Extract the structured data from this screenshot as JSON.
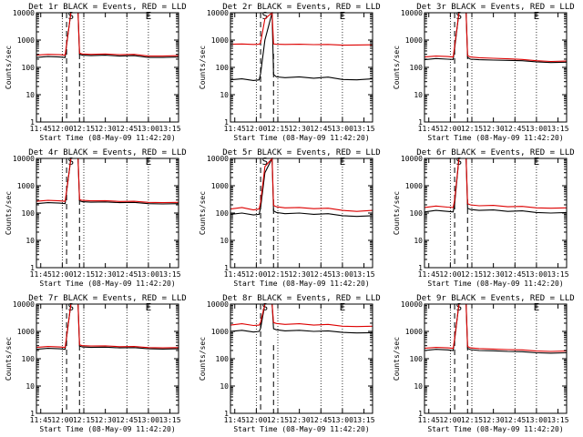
{
  "figure": {
    "ylabel": "Counts/sec",
    "xlabel": "Start Time (08-May-09 11:42:20)"
  },
  "chart_data": [
    {
      "type": "line",
      "title": "Det 1r BLACK = Events, RED = LLD",
      "ylabel": "Counts/sec",
      "xlabel": "Start Time (08-May-09 11:42:20)",
      "xticks": [
        "11:45",
        "12:00",
        "12:15",
        "12:30",
        "12:45",
        "13:00",
        "13:15"
      ],
      "yticks": [
        "1",
        "10",
        "100",
        "1000",
        "10000"
      ],
      "yscale": "log",
      "ylim": [
        1,
        10000
      ],
      "xlim": [
        "11:42",
        "13:21"
      ],
      "markers": [
        {
          "label": "S",
          "time": "12:06"
        },
        {
          "label": "E",
          "time": "13:00"
        }
      ],
      "series": [
        {
          "color": "#000000",
          "times": [
            "11:42",
            "11:50",
            "11:58",
            "12:02",
            "12:03",
            "12:06",
            "12:11",
            "12:12",
            "12:14",
            "12:20",
            "12:30",
            "12:40",
            "12:50",
            "13:00",
            "13:10",
            "13:21"
          ],
          "values": [
            230,
            250,
            240,
            230,
            650,
            10000,
            10000,
            300,
            280,
            270,
            280,
            260,
            270,
            230,
            230,
            240
          ]
        },
        {
          "color": "#dd0000",
          "times": [
            "11:42",
            "11:50",
            "11:58",
            "12:02",
            "12:03",
            "12:06",
            "12:11",
            "12:12",
            "12:14",
            "12:20",
            "12:30",
            "12:40",
            "12:50",
            "13:00",
            "13:10",
            "13:21"
          ],
          "values": [
            280,
            300,
            290,
            280,
            700,
            10000,
            10000,
            330,
            310,
            300,
            310,
            290,
            300,
            260,
            260,
            270
          ]
        }
      ]
    },
    {
      "type": "line",
      "title": "Det 2r BLACK = Events, RED = LLD",
      "ylabel": "Counts/sec",
      "xlabel": "Start Time (08-May-09 11:42:20)",
      "xticks": [
        "11:45",
        "12:00",
        "12:15",
        "12:30",
        "12:45",
        "13:00",
        "13:15"
      ],
      "yticks": [
        "1",
        "10",
        "100",
        "1000",
        "10000"
      ],
      "yscale": "log",
      "ylim": [
        1,
        10000
      ],
      "xlim": [
        "11:42",
        "13:21"
      ],
      "markers": [
        {
          "label": "S",
          "time": "12:06"
        },
        {
          "label": "E",
          "time": "13:00"
        }
      ],
      "series": [
        {
          "color": "#000000",
          "times": [
            "11:42",
            "11:50",
            "11:58",
            "12:02",
            "12:03",
            "12:06",
            "12:11",
            "12:12",
            "12:14",
            "12:20",
            "12:30",
            "12:40",
            "12:50",
            "13:00",
            "13:10",
            "13:21"
          ],
          "values": [
            35,
            38,
            33,
            35,
            60,
            1000,
            10000,
            55,
            45,
            42,
            45,
            40,
            44,
            36,
            35,
            38
          ]
        },
        {
          "color": "#dd0000",
          "times": [
            "11:42",
            "11:50",
            "11:58",
            "12:02",
            "12:03",
            "12:06",
            "12:11",
            "12:12",
            "12:14",
            "12:20",
            "12:30",
            "12:40",
            "12:50",
            "13:00",
            "13:10",
            "13:21"
          ],
          "values": [
            700,
            720,
            690,
            700,
            800,
            6000,
            10000,
            720,
            700,
            690,
            700,
            680,
            690,
            650,
            660,
            670
          ]
        }
      ]
    },
    {
      "type": "line",
      "title": "Det 3r BLACK = Events, RED = LLD",
      "ylabel": "Counts/sec",
      "xlabel": "Start Time (08-May-09 11:42:20)",
      "xticks": [
        "11:45",
        "12:00",
        "12:15",
        "12:30",
        "12:45",
        "13:00",
        "13:15"
      ],
      "yticks": [
        "1",
        "10",
        "100",
        "1000",
        "10000"
      ],
      "yscale": "log",
      "ylim": [
        1,
        10000
      ],
      "xlim": [
        "11:42",
        "13:21"
      ],
      "markers": [
        {
          "label": "S",
          "time": "12:06"
        },
        {
          "label": "E",
          "time": "13:00"
        }
      ],
      "series": [
        {
          "color": "#000000",
          "times": [
            "11:42",
            "11:50",
            "11:58",
            "12:02",
            "12:03",
            "12:06",
            "12:11",
            "12:12",
            "12:14",
            "12:20",
            "12:30",
            "12:40",
            "12:50",
            "13:00",
            "13:10",
            "13:21"
          ],
          "values": [
            190,
            210,
            200,
            195,
            500,
            10000,
            10000,
            230,
            200,
            190,
            185,
            180,
            175,
            160,
            150,
            155
          ]
        },
        {
          "color": "#dd0000",
          "times": [
            "11:42",
            "11:50",
            "11:58",
            "12:02",
            "12:03",
            "12:06",
            "12:11",
            "12:12",
            "12:14",
            "12:20",
            "12:30",
            "12:40",
            "12:50",
            "13:00",
            "13:10",
            "13:21"
          ],
          "values": [
            240,
            260,
            250,
            240,
            600,
            10000,
            10000,
            270,
            240,
            225,
            215,
            205,
            195,
            175,
            165,
            170
          ]
        }
      ]
    },
    {
      "type": "line",
      "title": "Det 4r BLACK = Events, RED = LLD",
      "ylabel": "Counts/sec",
      "xlabel": "Start Time (08-May-09 11:42:20)",
      "xticks": [
        "11:45",
        "12:00",
        "12:15",
        "12:30",
        "12:45",
        "13:00",
        "13:15"
      ],
      "yticks": [
        "1",
        "10",
        "100",
        "1000",
        "10000"
      ],
      "yscale": "log",
      "ylim": [
        1,
        10000
      ],
      "xlim": [
        "11:42",
        "13:21"
      ],
      "markers": [
        {
          "label": "S",
          "time": "12:06"
        },
        {
          "label": "E",
          "time": "13:00"
        }
      ],
      "series": [
        {
          "color": "#000000",
          "times": [
            "11:42",
            "11:50",
            "11:58",
            "12:02",
            "12:03",
            "12:06",
            "12:11",
            "12:12",
            "12:14",
            "12:20",
            "12:30",
            "12:40",
            "12:50",
            "13:00",
            "13:10",
            "13:21"
          ],
          "values": [
            220,
            240,
            230,
            220,
            600,
            10000,
            10000,
            280,
            260,
            250,
            255,
            240,
            245,
            220,
            215,
            220
          ]
        },
        {
          "color": "#dd0000",
          "times": [
            "11:42",
            "11:50",
            "11:58",
            "12:02",
            "12:03",
            "12:06",
            "12:11",
            "12:12",
            "12:14",
            "12:20",
            "12:30",
            "12:40",
            "12:50",
            "13:00",
            "13:10",
            "13:21"
          ],
          "values": [
            270,
            290,
            280,
            270,
            650,
            10000,
            10000,
            310,
            290,
            280,
            285,
            265,
            270,
            245,
            240,
            245
          ]
        }
      ]
    },
    {
      "type": "line",
      "title": "Det 5r BLACK = Events, RED = LLD",
      "ylabel": "Counts/sec",
      "xlabel": "Start Time (08-May-09 11:42:20)",
      "xticks": [
        "11:45",
        "12:00",
        "12:15",
        "12:30",
        "12:45",
        "13:00",
        "13:15"
      ],
      "yticks": [
        "1",
        "10",
        "100",
        "1000",
        "10000"
      ],
      "yscale": "log",
      "ylim": [
        1,
        10000
      ],
      "xlim": [
        "11:42",
        "13:21"
      ],
      "markers": [
        {
          "label": "S",
          "time": "12:06"
        },
        {
          "label": "E",
          "time": "13:00"
        }
      ],
      "series": [
        {
          "color": "#000000",
          "times": [
            "11:42",
            "11:50",
            "11:58",
            "12:02",
            "12:03",
            "12:06",
            "12:11",
            "12:12",
            "12:14",
            "12:20",
            "12:30",
            "12:40",
            "12:50",
            "13:00",
            "13:10",
            "13:21"
          ],
          "values": [
            90,
            100,
            85,
            90,
            160,
            3000,
            10000,
            120,
            105,
            95,
            100,
            90,
            95,
            80,
            75,
            80
          ]
        },
        {
          "color": "#dd0000",
          "times": [
            "11:42",
            "11:50",
            "11:58",
            "12:02",
            "12:03",
            "12:06",
            "12:11",
            "12:12",
            "12:14",
            "12:20",
            "12:30",
            "12:40",
            "12:50",
            "13:00",
            "13:10",
            "13:21"
          ],
          "values": [
            140,
            160,
            130,
            140,
            250,
            5000,
            10000,
            190,
            170,
            155,
            160,
            145,
            150,
            125,
            115,
            125
          ]
        }
      ]
    },
    {
      "type": "line",
      "title": "Det 6r BLACK = Events, RED = LLD",
      "ylabel": "Counts/sec",
      "xlabel": "Start Time (08-May-09 11:42:20)",
      "xticks": [
        "11:45",
        "12:00",
        "12:15",
        "12:30",
        "12:45",
        "13:00",
        "13:15"
      ],
      "yticks": [
        "1",
        "10",
        "100",
        "1000",
        "10000"
      ],
      "yscale": "log",
      "ylim": [
        1,
        10000
      ],
      "xlim": [
        "11:42",
        "13:21"
      ],
      "markers": [
        {
          "label": "S",
          "time": "12:06"
        },
        {
          "label": "E",
          "time": "13:00"
        }
      ],
      "series": [
        {
          "color": "#000000",
          "times": [
            "11:42",
            "11:50",
            "11:58",
            "12:02",
            "12:03",
            "12:06",
            "12:11",
            "12:12",
            "12:14",
            "12:20",
            "12:30",
            "12:40",
            "12:50",
            "13:00",
            "13:10",
            "13:21"
          ],
          "values": [
            110,
            125,
            115,
            110,
            220,
            10000,
            10000,
            150,
            135,
            125,
            130,
            115,
            120,
            105,
            100,
            105
          ]
        },
        {
          "color": "#dd0000",
          "times": [
            "11:42",
            "11:50",
            "11:58",
            "12:02",
            "12:03",
            "12:06",
            "12:11",
            "12:12",
            "12:14",
            "12:20",
            "12:30",
            "12:40",
            "12:50",
            "13:00",
            "13:10",
            "13:21"
          ],
          "values": [
            160,
            180,
            165,
            160,
            300,
            10000,
            10000,
            220,
            200,
            185,
            190,
            170,
            175,
            155,
            150,
            155
          ]
        }
      ]
    },
    {
      "type": "line",
      "title": "Det 7r BLACK = Events, RED = LLD",
      "ylabel": "Counts/sec",
      "xlabel": "Start Time (08-May-09 11:42:20)",
      "xticks": [
        "11:45",
        "12:00",
        "12:15",
        "12:30",
        "12:45",
        "13:00",
        "13:15"
      ],
      "yticks": [
        "1",
        "10",
        "100",
        "1000",
        "10000"
      ],
      "yscale": "log",
      "ylim": [
        1,
        10000
      ],
      "xlim": [
        "11:42",
        "13:21"
      ],
      "markers": [
        {
          "label": "S",
          "time": "12:06"
        },
        {
          "label": "E",
          "time": "13:00"
        }
      ],
      "series": [
        {
          "color": "#000000",
          "times": [
            "11:42",
            "11:50",
            "11:58",
            "12:02",
            "12:03",
            "12:06",
            "12:11",
            "12:12",
            "12:14",
            "12:20",
            "12:30",
            "12:40",
            "12:50",
            "13:00",
            "13:10",
            "13:21"
          ],
          "values": [
            220,
            240,
            230,
            220,
            600,
            10000,
            10000,
            290,
            270,
            260,
            265,
            250,
            255,
            230,
            225,
            230
          ]
        },
        {
          "color": "#dd0000",
          "times": [
            "11:42",
            "11:50",
            "11:58",
            "12:02",
            "12:03",
            "12:06",
            "12:11",
            "12:12",
            "12:14",
            "12:20",
            "12:30",
            "12:40",
            "12:50",
            "13:00",
            "13:10",
            "13:21"
          ],
          "values": [
            260,
            280,
            270,
            260,
            650,
            10000,
            10000,
            320,
            300,
            290,
            295,
            275,
            280,
            255,
            250,
            255
          ]
        }
      ]
    },
    {
      "type": "line",
      "title": "Det 8r BLACK = Events, RED = LLD",
      "ylabel": "Counts/sec",
      "xlabel": "Start Time (08-May-09 11:42:20)",
      "xticks": [
        "11:45",
        "12:00",
        "12:15",
        "12:30",
        "12:45",
        "13:00",
        "13:15"
      ],
      "yticks": [
        "1",
        "10",
        "100",
        "1000",
        "10000"
      ],
      "yscale": "log",
      "ylim": [
        1,
        10000
      ],
      "xlim": [
        "11:42",
        "13:21"
      ],
      "markers": [
        {
          "label": "S",
          "time": "12:06"
        },
        {
          "label": "E",
          "time": "13:00"
        }
      ],
      "series": [
        {
          "color": "#000000",
          "times": [
            "11:42",
            "11:50",
            "11:58",
            "12:02",
            "12:03",
            "12:06",
            "12:11",
            "12:12",
            "12:14",
            "12:20",
            "12:30",
            "12:40",
            "12:50",
            "13:00",
            "13:10",
            "13:21"
          ],
          "values": [
            1000,
            1100,
            950,
            1000,
            1300,
            10000,
            10000,
            1250,
            1150,
            1050,
            1100,
            1000,
            1050,
            920,
            880,
            900
          ]
        },
        {
          "color": "#dd0000",
          "times": [
            "11:42",
            "11:50",
            "11:58",
            "12:02",
            "12:03",
            "12:06",
            "12:11",
            "12:12",
            "12:14",
            "12:20",
            "12:30",
            "12:40",
            "12:50",
            "13:00",
            "13:10",
            "13:21"
          ],
          "values": [
            1700,
            1900,
            1650,
            1700,
            2200,
            10000,
            10000,
            2100,
            1950,
            1800,
            1900,
            1700,
            1800,
            1550,
            1500,
            1550
          ]
        }
      ]
    },
    {
      "type": "line",
      "title": "Det 9r BLACK = Events, RED = LLD",
      "ylabel": "Counts/sec",
      "xlabel": "Start Time (08-May-09 11:42:20)",
      "xticks": [
        "11:45",
        "12:00",
        "12:15",
        "12:30",
        "12:45",
        "13:00",
        "13:15"
      ],
      "yticks": [
        "1",
        "10",
        "100",
        "1000",
        "10000"
      ],
      "yscale": "log",
      "ylim": [
        1,
        10000
      ],
      "xlim": [
        "11:42",
        "13:21"
      ],
      "markers": [
        {
          "label": "S",
          "time": "12:06"
        },
        {
          "label": "E",
          "time": "13:00"
        }
      ],
      "series": [
        {
          "color": "#000000",
          "times": [
            "11:42",
            "11:50",
            "11:58",
            "12:02",
            "12:03",
            "12:06",
            "12:11",
            "12:12",
            "12:14",
            "12:20",
            "12:30",
            "12:40",
            "12:50",
            "13:00",
            "13:10",
            "13:21"
          ],
          "values": [
            200,
            220,
            210,
            200,
            500,
            10000,
            10000,
            240,
            215,
            200,
            195,
            185,
            180,
            165,
            160,
            165
          ]
        },
        {
          "color": "#dd0000",
          "times": [
            "11:42",
            "11:50",
            "11:58",
            "12:02",
            "12:03",
            "12:06",
            "12:11",
            "12:12",
            "12:14",
            "12:20",
            "12:30",
            "12:40",
            "12:50",
            "13:00",
            "13:10",
            "13:21"
          ],
          "values": [
            240,
            260,
            250,
            240,
            550,
            10000,
            10000,
            280,
            250,
            235,
            225,
            215,
            210,
            190,
            185,
            190
          ]
        }
      ]
    }
  ]
}
